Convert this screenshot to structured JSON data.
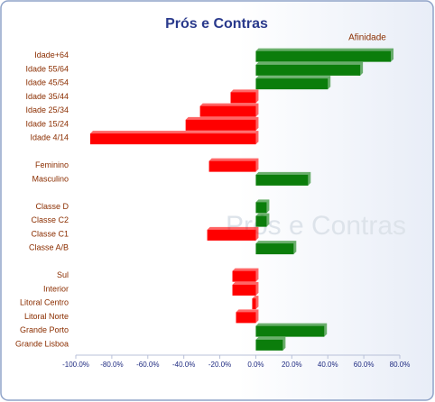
{
  "chart_data": {
    "type": "hbar",
    "title": "Prós e Contras",
    "legend_label": "Afinidade",
    "watermark": "Prós e Contras",
    "categories": [
      "Idade+64",
      "Idade 55/64",
      "Idade 45/54",
      "Idade 35/44",
      "Idade 25/34",
      "Idade 15/24",
      "Idade 4/14",
      null,
      "Feminino",
      "Masculino",
      null,
      "Classe D",
      "Classe C2",
      "Classe C1",
      "Classe A/B",
      null,
      "Sul",
      "Interior",
      "Litoral Centro",
      "Litoral Norte",
      "Grande Porto",
      "Grande Lisboa"
    ],
    "values": [
      75,
      58,
      40,
      -14,
      -31,
      -39,
      -92,
      null,
      -26,
      29,
      null,
      6,
      6,
      -27,
      21,
      null,
      -13,
      -13,
      -2,
      -11,
      38,
      15
    ],
    "positive_color": "#0b7d0b",
    "negative_color": "#ff0000",
    "xlim": [
      -100,
      80
    ],
    "xticks": [
      {
        "value": -100,
        "label": "-100.0%"
      },
      {
        "value": -80,
        "label": "-80.0%"
      },
      {
        "value": -60,
        "label": "-60.0%"
      },
      {
        "value": -40,
        "label": "-40.0%"
      },
      {
        "value": -20,
        "label": "-20.0%"
      },
      {
        "value": 0,
        "label": "0.0%"
      },
      {
        "value": 20,
        "label": "20.0%"
      },
      {
        "value": 40,
        "label": "40.0%"
      },
      {
        "value": 60,
        "label": "60.0%"
      },
      {
        "value": 80,
        "label": "80.0%"
      }
    ]
  }
}
